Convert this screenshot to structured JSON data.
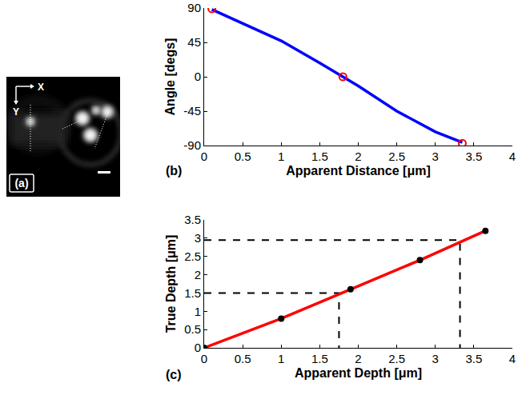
{
  "image_panel": {
    "panel_label": "(a)",
    "axis_labels": [
      "X",
      "Y"
    ]
  },
  "chart_data": [
    {
      "type": "line",
      "panel_label": "(b)",
      "x_label": "Apparent Distance [μm]",
      "y_label": "Angle [degs]",
      "xlim": [
        0,
        4
      ],
      "xticks": [
        0,
        0.5,
        1,
        1.5,
        2,
        2.5,
        3,
        3.5,
        4
      ],
      "ylim": [
        -90,
        90
      ],
      "yticks": [
        -90,
        -45,
        0,
        45,
        90
      ],
      "grid": false,
      "series": [
        {
          "type": "line",
          "color": "#0000ff",
          "x": [
            0.1,
            0.5,
            1.0,
            1.5,
            1.8,
            2.0,
            2.5,
            3.0,
            3.35
          ],
          "values": [
            88,
            70,
            47,
            18,
            0,
            -12,
            -45,
            -72,
            -86
          ]
        },
        {
          "type": "scatter",
          "marker": "open_circle",
          "color": "#ff0000",
          "x": [
            0.1,
            1.8,
            3.35
          ],
          "values": [
            89,
            0,
            -87
          ]
        }
      ]
    },
    {
      "type": "line",
      "panel_label": "(c)",
      "x_label": "Apparent Depth [μm]",
      "y_label": "True Depth [μm]",
      "xlim": [
        0,
        4
      ],
      "xticks": [
        0,
        0.5,
        1,
        1.5,
        2,
        2.5,
        3,
        3.5,
        4
      ],
      "ylim": [
        0,
        3.5
      ],
      "yticks": [
        0,
        0.5,
        1,
        1.5,
        2,
        2.5,
        3,
        3.5
      ],
      "grid": false,
      "series": [
        {
          "type": "line",
          "line_style": "dashed",
          "color": "#000000",
          "x": [
            0,
            1.75,
            1.75
          ],
          "values": [
            1.5,
            1.5,
            0
          ]
        },
        {
          "type": "line",
          "line_style": "dashed",
          "color": "#000000",
          "x": [
            0,
            3.32,
            3.32
          ],
          "values": [
            2.95,
            2.95,
            0
          ]
        },
        {
          "type": "line",
          "color": "#ff0000",
          "x": [
            0,
            1,
            1.9,
            2.8,
            3.65
          ],
          "values": [
            0,
            0.8,
            1.6,
            2.4,
            3.2
          ]
        },
        {
          "type": "scatter",
          "marker": "filled_circle",
          "color": "#000000",
          "x": [
            0,
            1,
            1.9,
            2.8,
            3.65
          ],
          "values": [
            0,
            0.8,
            1.6,
            2.4,
            3.2
          ]
        }
      ]
    }
  ]
}
